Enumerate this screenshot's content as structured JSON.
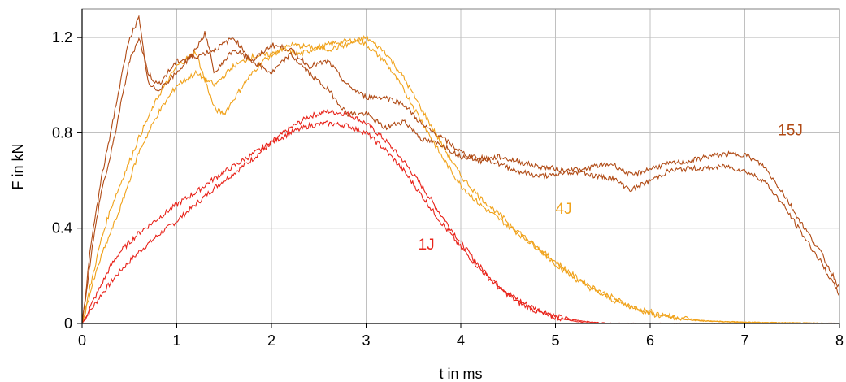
{
  "chart_data": {
    "type": "line",
    "xlabel": "t in ms",
    "ylabel": "F in kN",
    "xlim": [
      0,
      8
    ],
    "ylim": [
      0,
      1.32
    ],
    "xticks": [
      "0",
      "1",
      "2",
      "3",
      "4",
      "5",
      "6",
      "7",
      "8"
    ],
    "yticks": [
      "0",
      "0.4",
      "0.8",
      "1.2"
    ],
    "grid": true,
    "series": [
      {
        "name": "1J",
        "color": "#e8231a",
        "traces": [
          [
            [
              0,
              0
            ],
            [
              0.1,
              0.06
            ],
            [
              0.2,
              0.12
            ],
            [
              0.4,
              0.22
            ],
            [
              0.6,
              0.3
            ],
            [
              0.8,
              0.37
            ],
            [
              1.0,
              0.43
            ],
            [
              1.2,
              0.5
            ],
            [
              1.4,
              0.57
            ],
            [
              1.6,
              0.63
            ],
            [
              1.8,
              0.69
            ],
            [
              2.0,
              0.76
            ],
            [
              2.2,
              0.82
            ],
            [
              2.4,
              0.87
            ],
            [
              2.6,
              0.89
            ],
            [
              2.8,
              0.88
            ],
            [
              3.0,
              0.84
            ],
            [
              3.2,
              0.77
            ],
            [
              3.4,
              0.68
            ],
            [
              3.6,
              0.57
            ],
            [
              3.8,
              0.45
            ],
            [
              4.0,
              0.34
            ],
            [
              4.2,
              0.24
            ],
            [
              4.4,
              0.16
            ],
            [
              4.6,
              0.1
            ],
            [
              4.8,
              0.06
            ],
            [
              5.0,
              0.03
            ],
            [
              5.2,
              0.015
            ],
            [
              5.4,
              0.005
            ],
            [
              5.6,
              0
            ],
            [
              6.0,
              0
            ],
            [
              7.0,
              0
            ],
            [
              8.0,
              0
            ]
          ],
          [
            [
              0,
              0
            ],
            [
              0.1,
              0.08
            ],
            [
              0.2,
              0.16
            ],
            [
              0.3,
              0.24
            ],
            [
              0.4,
              0.3
            ],
            [
              0.6,
              0.38
            ],
            [
              0.8,
              0.44
            ],
            [
              1.0,
              0.5
            ],
            [
              1.2,
              0.55
            ],
            [
              1.4,
              0.61
            ],
            [
              1.6,
              0.66
            ],
            [
              1.8,
              0.71
            ],
            [
              2.0,
              0.76
            ],
            [
              2.2,
              0.8
            ],
            [
              2.4,
              0.83
            ],
            [
              2.6,
              0.84
            ],
            [
              2.8,
              0.83
            ],
            [
              3.0,
              0.8
            ],
            [
              3.2,
              0.73
            ],
            [
              3.4,
              0.64
            ],
            [
              3.6,
              0.53
            ],
            [
              3.8,
              0.42
            ],
            [
              4.0,
              0.32
            ],
            [
              4.2,
              0.23
            ],
            [
              4.4,
              0.15
            ],
            [
              4.6,
              0.09
            ],
            [
              4.8,
              0.05
            ],
            [
              5.0,
              0.025
            ],
            [
              5.2,
              0.01
            ],
            [
              5.4,
              0
            ],
            [
              6.0,
              0
            ],
            [
              7.0,
              0
            ],
            [
              8.0,
              0
            ]
          ]
        ]
      },
      {
        "name": "4J",
        "color": "#f0a21a",
        "traces": [
          [
            [
              0,
              0
            ],
            [
              0.1,
              0.18
            ],
            [
              0.2,
              0.35
            ],
            [
              0.3,
              0.48
            ],
            [
              0.4,
              0.58
            ],
            [
              0.5,
              0.68
            ],
            [
              0.6,
              0.78
            ],
            [
              0.8,
              0.95
            ],
            [
              1.0,
              1.08
            ],
            [
              1.2,
              1.14
            ],
            [
              1.3,
              1.02
            ],
            [
              1.4,
              0.9
            ],
            [
              1.5,
              0.88
            ],
            [
              1.7,
              1.0
            ],
            [
              1.9,
              1.1
            ],
            [
              2.1,
              1.15
            ],
            [
              2.3,
              1.13
            ],
            [
              2.5,
              1.16
            ],
            [
              2.7,
              1.18
            ],
            [
              2.9,
              1.19
            ],
            [
              3.0,
              1.17
            ],
            [
              3.2,
              1.1
            ],
            [
              3.4,
              0.98
            ],
            [
              3.6,
              0.84
            ],
            [
              3.8,
              0.7
            ],
            [
              4.0,
              0.58
            ],
            [
              4.2,
              0.5
            ],
            [
              4.4,
              0.44
            ],
            [
              4.6,
              0.38
            ],
            [
              4.8,
              0.32
            ],
            [
              5.0,
              0.26
            ],
            [
              5.2,
              0.2
            ],
            [
              5.4,
              0.15
            ],
            [
              5.6,
              0.11
            ],
            [
              5.8,
              0.07
            ],
            [
              6.0,
              0.04
            ],
            [
              6.2,
              0.025
            ],
            [
              6.4,
              0.015
            ],
            [
              6.6,
              0.01
            ],
            [
              7.0,
              0.005
            ],
            [
              8.0,
              0
            ]
          ],
          [
            [
              0,
              0
            ],
            [
              0.1,
              0.15
            ],
            [
              0.2,
              0.28
            ],
            [
              0.3,
              0.38
            ],
            [
              0.4,
              0.48
            ],
            [
              0.5,
              0.6
            ],
            [
              0.6,
              0.72
            ],
            [
              0.8,
              0.88
            ],
            [
              1.0,
              1.0
            ],
            [
              1.2,
              1.05
            ],
            [
              1.4,
              1.0
            ],
            [
              1.6,
              1.08
            ],
            [
              1.8,
              1.12
            ],
            [
              2.0,
              1.13
            ],
            [
              2.2,
              1.17
            ],
            [
              2.4,
              1.16
            ],
            [
              2.6,
              1.15
            ],
            [
              2.8,
              1.17
            ],
            [
              3.0,
              1.2
            ],
            [
              3.2,
              1.14
            ],
            [
              3.4,
              1.03
            ],
            [
              3.6,
              0.89
            ],
            [
              3.8,
              0.75
            ],
            [
              4.0,
              0.62
            ],
            [
              4.2,
              0.53
            ],
            [
              4.4,
              0.46
            ],
            [
              4.6,
              0.39
            ],
            [
              4.8,
              0.32
            ],
            [
              5.0,
              0.25
            ],
            [
              5.2,
              0.19
            ],
            [
              5.4,
              0.14
            ],
            [
              5.6,
              0.1
            ],
            [
              5.8,
              0.07
            ],
            [
              6.0,
              0.05
            ],
            [
              6.2,
              0.03
            ],
            [
              6.4,
              0.02
            ],
            [
              6.6,
              0.01
            ],
            [
              7.0,
              0.005
            ],
            [
              8.0,
              0
            ]
          ]
        ]
      },
      {
        "name": "15J",
        "color": "#b04a14",
        "traces": [
          [
            [
              0,
              0
            ],
            [
              0.1,
              0.3
            ],
            [
              0.2,
              0.55
            ],
            [
              0.3,
              0.7
            ],
            [
              0.4,
              0.9
            ],
            [
              0.5,
              1.1
            ],
            [
              0.6,
              1.2
            ],
            [
              0.7,
              1.05
            ],
            [
              0.8,
              1.0
            ],
            [
              1.0,
              1.1
            ],
            [
              1.2,
              1.12
            ],
            [
              1.4,
              1.15
            ],
            [
              1.6,
              1.2
            ],
            [
              1.8,
              1.1
            ],
            [
              2.0,
              1.17
            ],
            [
              2.2,
              1.15
            ],
            [
              2.4,
              1.08
            ],
            [
              2.6,
              1.1
            ],
            [
              2.8,
              1.0
            ],
            [
              3.0,
              0.95
            ],
            [
              3.2,
              0.95
            ],
            [
              3.4,
              0.92
            ],
            [
              3.6,
              0.83
            ],
            [
              3.8,
              0.78
            ],
            [
              4.0,
              0.72
            ],
            [
              4.2,
              0.68
            ],
            [
              4.4,
              0.7
            ],
            [
              4.6,
              0.68
            ],
            [
              4.8,
              0.66
            ],
            [
              5.0,
              0.65
            ],
            [
              5.2,
              0.63
            ],
            [
              5.4,
              0.66
            ],
            [
              5.6,
              0.67
            ],
            [
              5.8,
              0.62
            ],
            [
              6.0,
              0.65
            ],
            [
              6.2,
              0.67
            ],
            [
              6.4,
              0.68
            ],
            [
              6.6,
              0.7
            ],
            [
              6.8,
              0.71
            ],
            [
              7.0,
              0.71
            ],
            [
              7.2,
              0.66
            ],
            [
              7.4,
              0.55
            ],
            [
              7.6,
              0.42
            ],
            [
              7.8,
              0.3
            ],
            [
              8.0,
              0.15
            ]
          ],
          [
            [
              0,
              0
            ],
            [
              0.1,
              0.35
            ],
            [
              0.2,
              0.6
            ],
            [
              0.3,
              0.8
            ],
            [
              0.4,
              1.0
            ],
            [
              0.5,
              1.2
            ],
            [
              0.6,
              1.28
            ],
            [
              0.7,
              1.0
            ],
            [
              0.8,
              0.98
            ],
            [
              1.0,
              1.05
            ],
            [
              1.2,
              1.15
            ],
            [
              1.3,
              1.22
            ],
            [
              1.4,
              1.05
            ],
            [
              1.6,
              1.15
            ],
            [
              1.8,
              1.1
            ],
            [
              2.0,
              1.05
            ],
            [
              2.2,
              1.13
            ],
            [
              2.4,
              1.05
            ],
            [
              2.6,
              0.98
            ],
            [
              2.8,
              0.88
            ],
            [
              3.0,
              0.88
            ],
            [
              3.2,
              0.82
            ],
            [
              3.4,
              0.85
            ],
            [
              3.6,
              0.77
            ],
            [
              3.8,
              0.75
            ],
            [
              4.0,
              0.7
            ],
            [
              4.2,
              0.7
            ],
            [
              4.4,
              0.67
            ],
            [
              4.6,
              0.64
            ],
            [
              4.8,
              0.62
            ],
            [
              5.0,
              0.62
            ],
            [
              5.2,
              0.65
            ],
            [
              5.4,
              0.62
            ],
            [
              5.6,
              0.61
            ],
            [
              5.8,
              0.56
            ],
            [
              6.0,
              0.6
            ],
            [
              6.2,
              0.64
            ],
            [
              6.4,
              0.65
            ],
            [
              6.6,
              0.65
            ],
            [
              6.8,
              0.66
            ],
            [
              7.0,
              0.64
            ],
            [
              7.2,
              0.6
            ],
            [
              7.4,
              0.5
            ],
            [
              7.6,
              0.38
            ],
            [
              7.8,
              0.26
            ],
            [
              8.0,
              0.12
            ]
          ]
        ]
      }
    ],
    "annotations": [
      {
        "text": "1J",
        "x": 3.55,
        "y": 0.31,
        "color": "#e8231a"
      },
      {
        "text": "4J",
        "x": 5.0,
        "y": 0.46,
        "color": "#f0a21a"
      },
      {
        "text": "15J",
        "x": 7.35,
        "y": 0.79,
        "color": "#b04a14"
      }
    ]
  }
}
